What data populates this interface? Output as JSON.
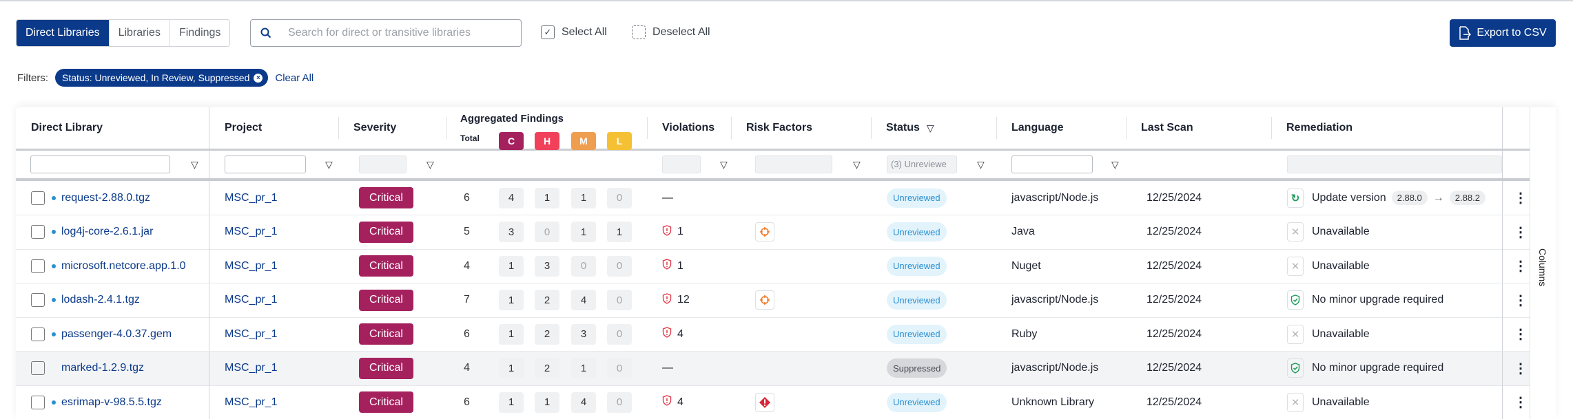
{
  "tabs": [
    {
      "label": "Direct Libraries",
      "active": true
    },
    {
      "label": "Libraries"
    },
    {
      "label": "Findings"
    }
  ],
  "search": {
    "placeholder": "Search for direct or transitive libraries",
    "icon": "search-icon"
  },
  "select_all": "Select All",
  "deselect_all": "Deselect All",
  "export": "Export to CSV",
  "filters": {
    "label": "Filters:",
    "chip": "Status: Unreviewed, In Review, Suppressed",
    "clear": "Clear All"
  },
  "columns_label": "Columns",
  "headers": {
    "direct_library": "Direct Library",
    "project": "Project",
    "severity": "Severity",
    "aggregated": "Aggregated Findings",
    "total": "Total",
    "c": "C",
    "h": "H",
    "m": "M",
    "l": "L",
    "violations": "Violations",
    "risk_factors": "Risk Factors",
    "status": "Status",
    "language": "Language",
    "last_scan": "Last Scan",
    "remediation": "Remediation"
  },
  "status_filter_value": "(3) Unreviewe",
  "colors": {
    "primary": "#0b3a8a",
    "critical": "#a4215e",
    "high": "#f0405a",
    "medium": "#ef9d4e",
    "low": "#f5c033"
  },
  "rows": [
    {
      "name": "request-2.88.0.tgz",
      "dot": true,
      "project": "MSC_pr_1",
      "severity": "Critical",
      "total": "6",
      "c": "4",
      "h": "1",
      "m": "1",
      "l": "0",
      "violations": null,
      "risk": null,
      "status": "Unreviewed",
      "language": "javascript/Node.js",
      "last_scan": "12/25/2024",
      "remediation": {
        "type": "update",
        "text": "Update version",
        "from": "2.88.0",
        "to": "2.88.2"
      }
    },
    {
      "name": "log4j-core-2.6.1.jar",
      "dot": true,
      "project": "MSC_pr_1",
      "severity": "Critical",
      "total": "5",
      "c": "3",
      "h": "0",
      "m": "1",
      "l": "1",
      "violations": "1",
      "risk": "crosshair",
      "status": "Unreviewed",
      "language": "Java",
      "last_scan": "12/25/2024",
      "remediation": {
        "type": "unavailable",
        "text": "Unavailable"
      }
    },
    {
      "name": "microsoft.netcore.app.1.0",
      "dot": true,
      "project": "MSC_pr_1",
      "severity": "Critical",
      "total": "4",
      "c": "1",
      "h": "3",
      "m": "0",
      "l": "0",
      "violations": "1",
      "risk": null,
      "status": "Unreviewed",
      "language": "Nuget",
      "last_scan": "12/25/2024",
      "remediation": {
        "type": "unavailable",
        "text": "Unavailable"
      }
    },
    {
      "name": "lodash-2.4.1.tgz",
      "dot": true,
      "project": "MSC_pr_1",
      "severity": "Critical",
      "total": "7",
      "c": "1",
      "h": "2",
      "m": "4",
      "l": "0",
      "violations": "12",
      "risk": "crosshair",
      "status": "Unreviewed",
      "language": "javascript/Node.js",
      "last_scan": "12/25/2024",
      "remediation": {
        "type": "ok",
        "text": "No minor upgrade required"
      }
    },
    {
      "name": "passenger-4.0.37.gem",
      "dot": true,
      "project": "MSC_pr_1",
      "severity": "Critical",
      "total": "6",
      "c": "1",
      "h": "2",
      "m": "3",
      "l": "0",
      "violations": "4",
      "risk": null,
      "status": "Unreviewed",
      "language": "Ruby",
      "last_scan": "12/25/2024",
      "remediation": {
        "type": "unavailable",
        "text": "Unavailable"
      }
    },
    {
      "name": "marked-1.2.9.tgz",
      "dot": false,
      "project": "MSC_pr_1",
      "severity": "Critical",
      "total": "4",
      "c": "1",
      "h": "2",
      "m": "1",
      "l": "0",
      "violations": null,
      "risk": null,
      "status": "Suppressed",
      "language": "javascript/Node.js",
      "last_scan": "12/25/2024",
      "remediation": {
        "type": "ok",
        "text": "No minor upgrade required"
      }
    },
    {
      "name": "esrimap-v-98.5.5.tgz",
      "dot": true,
      "project": "MSC_pr_1",
      "severity": "Critical",
      "total": "6",
      "c": "1",
      "h": "1",
      "m": "4",
      "l": "0",
      "violations": "4",
      "risk": "diamond-alert",
      "status": "Unreviewed",
      "language": "Unknown Library",
      "last_scan": "12/25/2024",
      "remediation": {
        "type": "unavailable",
        "text": "Unavailable"
      }
    }
  ]
}
